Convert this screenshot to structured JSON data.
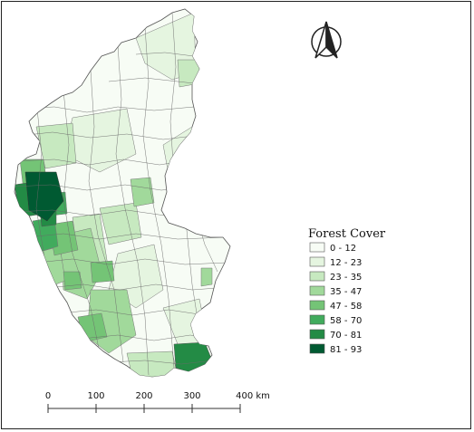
{
  "legend": {
    "title": "Forest Cover",
    "classes": [
      {
        "label": "0 - 12",
        "color": "#f7fcf5"
      },
      {
        "label": "12 - 23",
        "color": "#e5f5e0"
      },
      {
        "label": "23 - 35",
        "color": "#c7e9c0"
      },
      {
        "label": "35 - 47",
        "color": "#a1d99b"
      },
      {
        "label": "47 - 58",
        "color": "#74c476"
      },
      {
        "label": "58 - 70",
        "color": "#41ab5d"
      },
      {
        "label": "70 - 81",
        "color": "#238b45"
      },
      {
        "label": "81 - 93",
        "color": "#005a32"
      }
    ]
  },
  "scale_bar": {
    "ticks": [
      "0",
      "100",
      "200",
      "300",
      "400 km"
    ]
  },
  "north_arrow": {
    "icon": "north-arrow-icon"
  }
}
